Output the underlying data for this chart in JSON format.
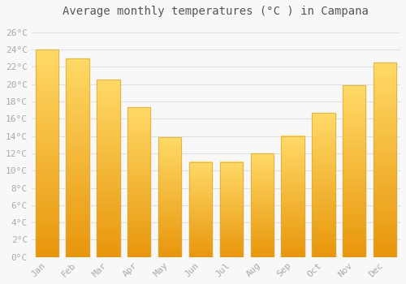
{
  "title": "Average monthly temperatures (°C ) in Campana",
  "months": [
    "Jan",
    "Feb",
    "Mar",
    "Apr",
    "May",
    "Jun",
    "Jul",
    "Aug",
    "Sep",
    "Oct",
    "Nov",
    "Dec"
  ],
  "values": [
    24.0,
    23.0,
    20.5,
    17.3,
    13.9,
    11.0,
    11.0,
    12.0,
    14.0,
    16.7,
    19.9,
    22.5
  ],
  "bar_color_top": "#FFD966",
  "bar_color_bottom": "#E8960C",
  "ylim": [
    0,
    27
  ],
  "yticks": [
    0,
    2,
    4,
    6,
    8,
    10,
    12,
    14,
    16,
    18,
    20,
    22,
    24,
    26
  ],
  "ytick_labels": [
    "0°C",
    "2°C",
    "4°C",
    "6°C",
    "8°C",
    "10°C",
    "12°C",
    "14°C",
    "16°C",
    "18°C",
    "20°C",
    "22°C",
    "24°C",
    "26°C"
  ],
  "background_color": "#f8f8f8",
  "grid_color": "#e0e0e0",
  "title_fontsize": 10,
  "tick_fontsize": 8,
  "tick_color": "#aaaaaa",
  "bar_edge_color": "#ccaa44"
}
